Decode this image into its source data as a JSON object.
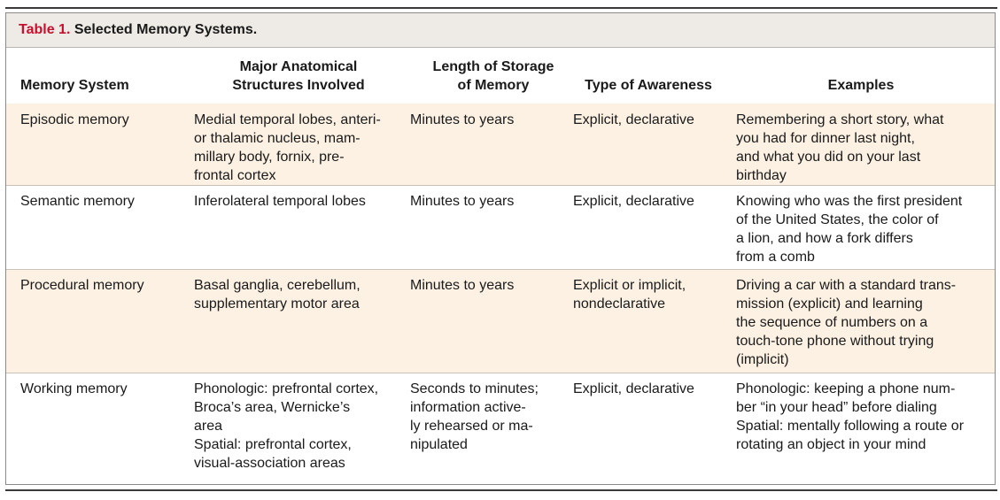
{
  "table": {
    "number": "Table 1.",
    "title": "Selected Memory Systems.",
    "headers": {
      "memory_system": "Memory System",
      "structures": [
        "Major Anatomical",
        "Structures Involved"
      ],
      "storage": [
        "Length of Storage",
        "of Memory"
      ],
      "awareness": "Type of Awareness",
      "examples": "Examples"
    },
    "rows": [
      {
        "system": "Episodic memory",
        "structures": [
          "Medial temporal lobes, anteri-",
          "or thalamic nucleus, mam-",
          "millary body, fornix, pre-",
          "frontal cortex"
        ],
        "storage": [
          "Minutes to years"
        ],
        "awareness": [
          "Explicit, declarative"
        ],
        "examples": [
          "Remembering a short story, what",
          "you had for dinner last night,",
          "and what you did on your last",
          "birthday"
        ]
      },
      {
        "system": "Semantic memory",
        "structures": [
          "Inferolateral temporal lobes"
        ],
        "storage": [
          "Minutes to years"
        ],
        "awareness": [
          "Explicit, declarative"
        ],
        "examples": [
          "Knowing who was the first president",
          "of the United States, the color of",
          "a lion, and how a fork differs",
          "from a comb"
        ]
      },
      {
        "system": "Procedural memory",
        "structures": [
          "Basal ganglia, cerebellum,",
          "supplementary motor area"
        ],
        "storage": [
          "Minutes to years"
        ],
        "awareness": [
          "Explicit or implicit,",
          "nondeclarative"
        ],
        "examples": [
          "Driving a car with a standard trans-",
          "mission (explicit) and learning",
          "the sequence of numbers on a",
          "touch-tone phone without trying",
          "(implicit)"
        ]
      },
      {
        "system": "Working memory",
        "structures_a": [
          "Phonologic: prefrontal cortex,",
          "Broca’s area, Wernicke’s",
          "area"
        ],
        "structures_b": [
          "Spatial: prefrontal cortex,",
          "visual-association areas"
        ],
        "storage": [
          "Seconds to minutes;",
          "information active-",
          "ly rehearsed or ma-",
          "nipulated"
        ],
        "awareness": [
          "Explicit, declarative"
        ],
        "examples_a": [
          "Phonologic: keeping a phone num-",
          "ber “in your head” before dialing"
        ],
        "examples_b": [
          "Spatial: mentally following a route or",
          "rotating an object in your mind"
        ]
      }
    ]
  }
}
